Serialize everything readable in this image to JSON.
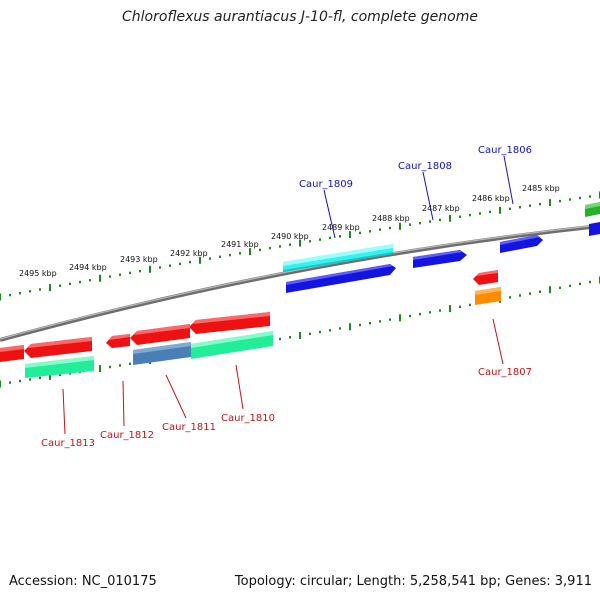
{
  "title": "Chloroflexus aurantiacus J-10-fl, complete genome",
  "footer": {
    "accession": "Accession: NC_010175",
    "topology": "Topology: circular; Length: 5,258,541 bp; Genes: 3,911"
  },
  "colors": {
    "backbone": "#8a8a8a",
    "tick": "#1a8a1a",
    "forward_label": "#1010cc",
    "reverse_label": "#cc1010",
    "red": "#ee1111",
    "blue": "#1111dd",
    "cyan": "#22eeee",
    "teal": "#22ee99",
    "steelblue": "#4a7fb5",
    "orange": "#ff8c00",
    "green": "#22aa22"
  },
  "kbp_labels": [
    "2495 kbp",
    "2494 kbp",
    "2493 kbp",
    "2492 kbp",
    "2491 kbp",
    "2490 kbp",
    "2489 kbp",
    "2488 kbp",
    "2487 kbp",
    "2486 kbp",
    "2485 kbp"
  ],
  "forward_gene_labels": [
    "Caur_1809",
    "Caur_1808",
    "Caur_1806"
  ],
  "reverse_gene_labels": [
    "Caur_1813",
    "Caur_1812",
    "Caur_1811",
    "Caur_1810",
    "Caur_1807"
  ]
}
